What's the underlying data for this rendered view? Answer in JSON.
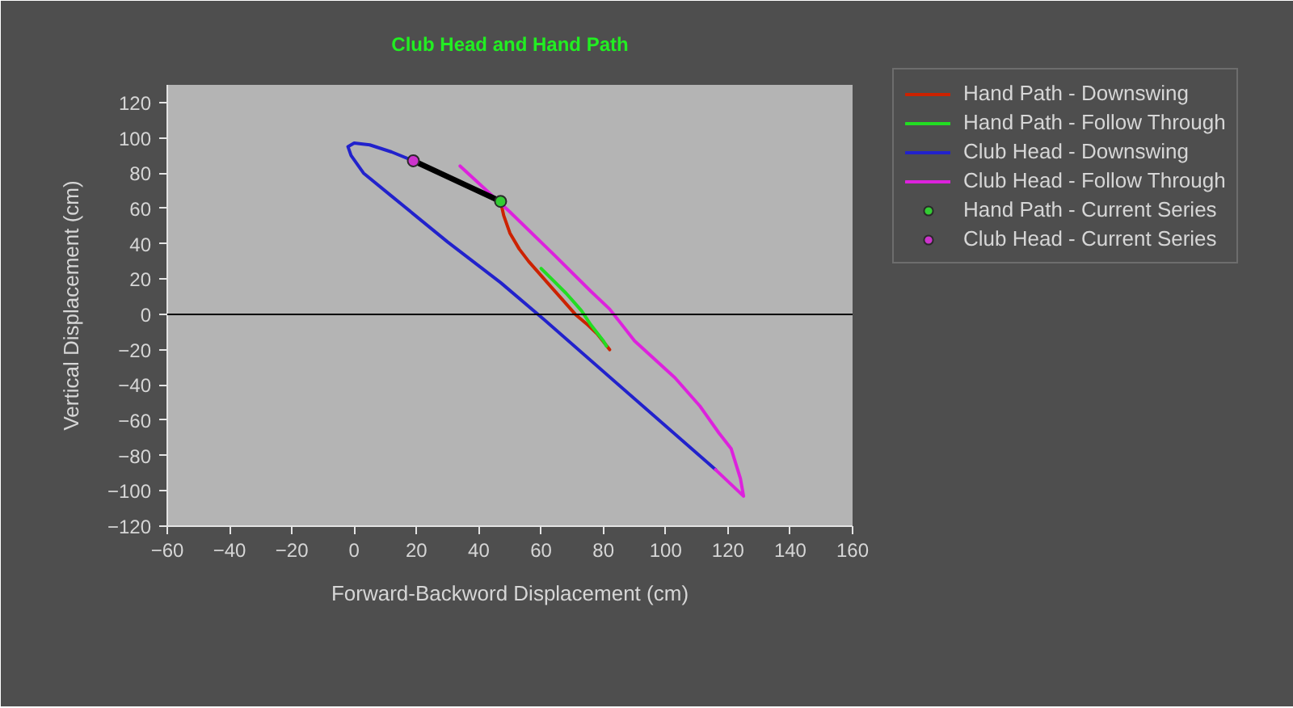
{
  "chart_data": {
    "type": "line",
    "title": "Club Head and Hand Path",
    "xlabel": "Forward-Backword Displacement (cm)",
    "ylabel": "Vertical Displacement (cm)",
    "xlim": [
      -60,
      160
    ],
    "ylim": [
      -120,
      130
    ],
    "xticks": [
      -60,
      -40,
      -20,
      0,
      20,
      40,
      60,
      80,
      100,
      120,
      140,
      160
    ],
    "yticks": [
      -120,
      -100,
      -80,
      -60,
      -40,
      -20,
      0,
      20,
      40,
      60,
      80,
      100,
      120
    ],
    "grid": false,
    "legend": "right",
    "ref_lines": [
      {
        "axis": "y",
        "value": 0,
        "color": "#000000"
      }
    ],
    "series": [
      {
        "name": "Hand Path - Downswing",
        "color": "#cc2200",
        "x": [
          47,
          48,
          50,
          53,
          56,
          60,
          64,
          67,
          71,
          75,
          78,
          82
        ],
        "values": [
          64,
          56,
          46,
          37,
          30,
          22,
          14,
          8,
          0,
          -6,
          -11,
          -20
        ]
      },
      {
        "name": "Hand Path - Follow Through",
        "color": "#22dd22",
        "x": [
          81,
          80,
          76,
          73,
          70,
          68,
          64,
          60
        ],
        "values": [
          -18,
          -15,
          -6,
          2,
          8,
          12,
          19,
          26
        ]
      },
      {
        "name": "Club Head - Downswing",
        "color": "#2222cc",
        "x": [
          19,
          12,
          5,
          0,
          -2,
          -1,
          3,
          12,
          30,
          47,
          61,
          116
        ],
        "values": [
          87,
          92,
          96,
          97,
          95,
          90,
          80,
          67,
          41,
          18,
          -3,
          -88
        ]
      },
      {
        "name": "Club Head - Follow Through",
        "color": "#dd22dd",
        "x": [
          116,
          125,
          124,
          121,
          117,
          111,
          103,
          90,
          82,
          76,
          64,
          50,
          34
        ],
        "values": [
          -88,
          -103,
          -93,
          -76,
          -67,
          -52,
          -36,
          -15,
          3,
          13,
          34,
          58,
          84
        ]
      },
      {
        "color": "#000000",
        "x": [
          19,
          47
        ],
        "values": [
          87,
          64
        ]
      },
      {
        "name": "Hand Path - Current Series",
        "type": "scatter",
        "marker": "circle",
        "color": "#33cc33",
        "x": [
          47
        ],
        "values": [
          64
        ]
      },
      {
        "name": "Club Head - Current Series",
        "type": "scatter",
        "marker": "circle",
        "color": "#cc33cc",
        "x": [
          19
        ],
        "values": [
          87
        ]
      }
    ]
  }
}
